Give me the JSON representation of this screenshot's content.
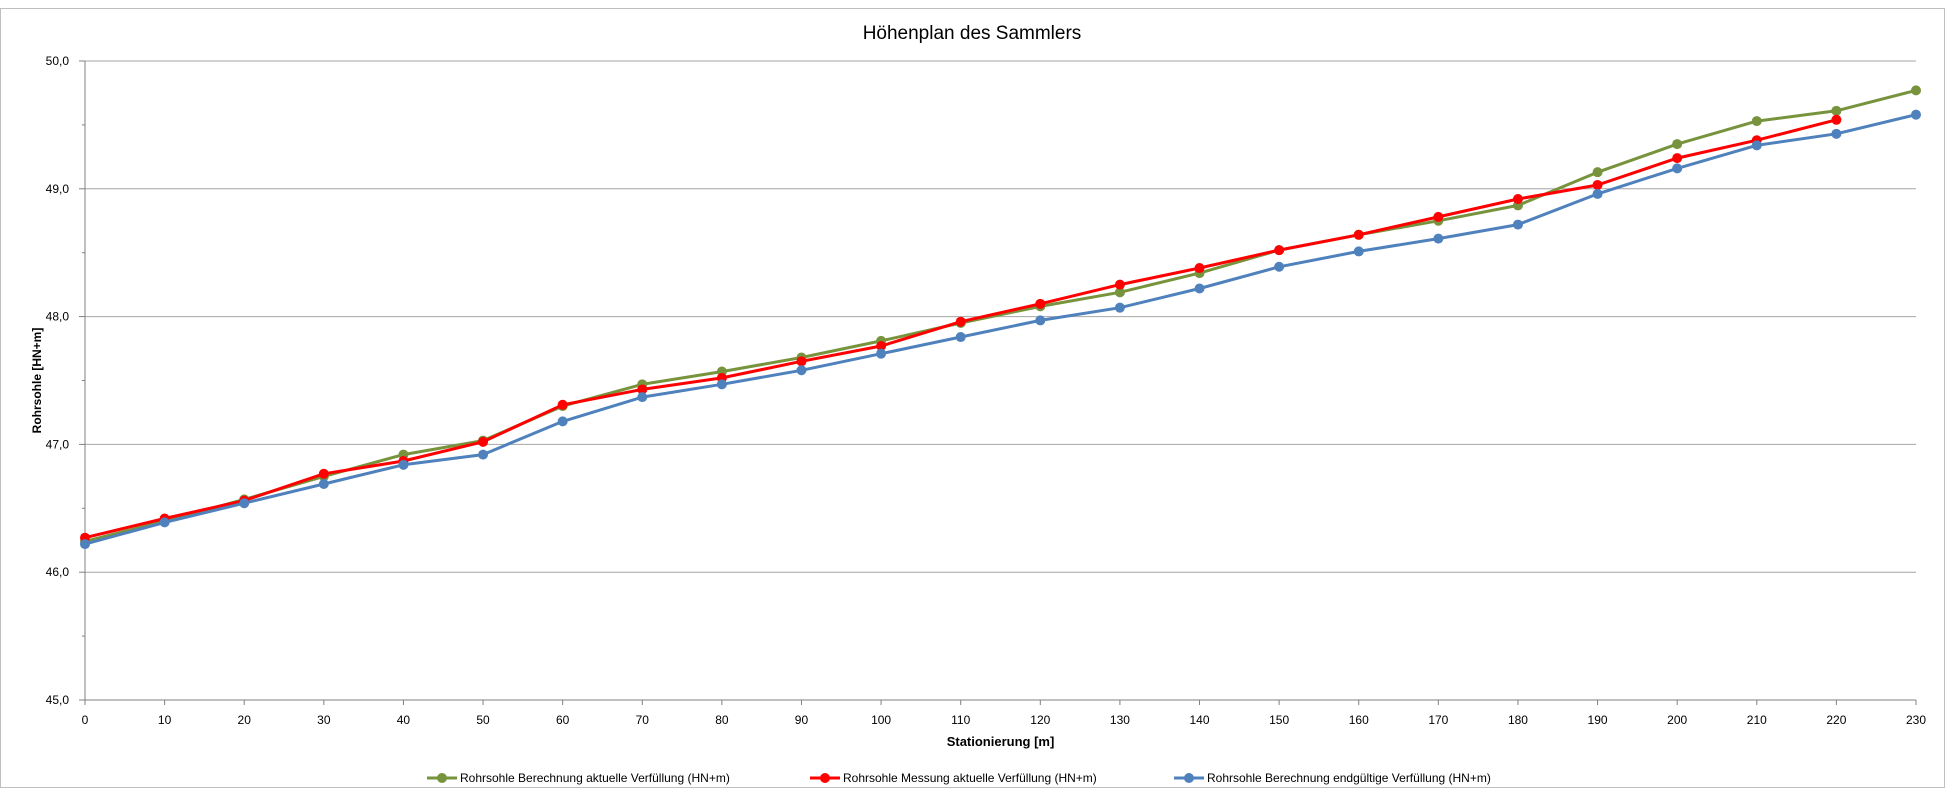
{
  "chart_data": {
    "type": "line",
    "title": "Höhenplan des Sammlers",
    "xlabel": "Stationierung [m]",
    "ylabel": "Rohrsohle [HN+m]",
    "xlim": [
      0,
      230
    ],
    "ylim": [
      45.0,
      50.0
    ],
    "x_ticks": [
      "0",
      "10",
      "20",
      "30",
      "40",
      "50",
      "60",
      "70",
      "80",
      "90",
      "100",
      "110",
      "120",
      "130",
      "140",
      "150",
      "160",
      "170",
      "180",
      "190",
      "200",
      "210",
      "220",
      "230"
    ],
    "y_ticks": [
      "45,0",
      "46,0",
      "47,0",
      "48,0",
      "49,0",
      "50,0"
    ],
    "grid": true,
    "legend_position": "bottom",
    "series": [
      {
        "name": "Rohrsohle Berechnung aktuelle Verfüllung (HN+m)",
        "color": "#77933c",
        "x": [
          0,
          10,
          20,
          30,
          40,
          50,
          60,
          70,
          80,
          90,
          100,
          110,
          120,
          130,
          140,
          150,
          160,
          170,
          180,
          190,
          200,
          210,
          220,
          230
        ],
        "values": [
          46.24,
          46.4,
          46.57,
          46.75,
          46.92,
          47.03,
          47.3,
          47.47,
          47.57,
          47.68,
          47.81,
          47.95,
          48.08,
          48.19,
          48.34,
          48.52,
          48.64,
          48.75,
          48.87,
          49.13,
          49.35,
          49.53,
          49.61,
          49.77
        ]
      },
      {
        "name": "Rohrsohle Messung aktuelle Verfüllung (HN+m)",
        "color": "#ff0000",
        "x": [
          0,
          10,
          20,
          30,
          40,
          50,
          60,
          70,
          80,
          90,
          100,
          110,
          120,
          130,
          140,
          150,
          160,
          170,
          180,
          190,
          200,
          210,
          220
        ],
        "values": [
          46.27,
          46.42,
          46.56,
          46.77,
          46.87,
          47.02,
          47.31,
          47.43,
          47.52,
          47.65,
          47.77,
          47.96,
          48.1,
          48.25,
          48.38,
          48.52,
          48.64,
          48.78,
          48.92,
          49.03,
          49.24,
          49.38,
          49.54
        ]
      },
      {
        "name": "Rohrsohle Berechnung endgültige Verfüllung (HN+m)",
        "color": "#4f81bd",
        "x": [
          0,
          10,
          20,
          30,
          40,
          50,
          60,
          70,
          80,
          90,
          100,
          110,
          120,
          130,
          140,
          150,
          160,
          170,
          180,
          190,
          200,
          210,
          220,
          230
        ],
        "values": [
          46.22,
          46.39,
          46.54,
          46.69,
          46.84,
          46.92,
          47.18,
          47.37,
          47.47,
          47.58,
          47.71,
          47.84,
          47.97,
          48.07,
          48.22,
          48.39,
          48.51,
          48.61,
          48.72,
          48.96,
          49.16,
          49.34,
          49.43,
          49.58
        ]
      }
    ]
  }
}
